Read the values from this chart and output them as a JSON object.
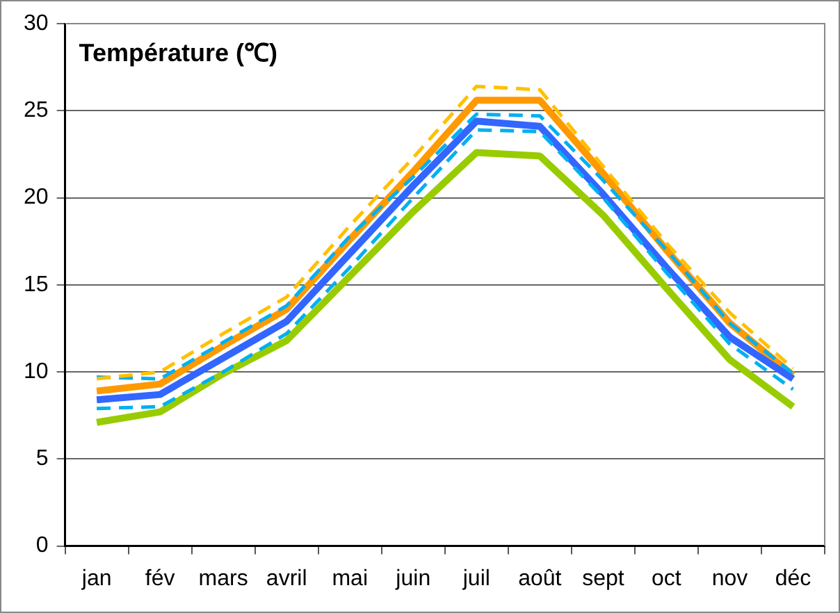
{
  "chart_data": {
    "type": "line",
    "title": "Température (℃)",
    "categories": [
      "jan",
      "fév",
      "mars",
      "avril",
      "mai",
      "juin",
      "juil",
      "août",
      "sept",
      "oct",
      "nov",
      "déc"
    ],
    "series": [
      {
        "color": "#ffc000",
        "line_style": "dashed",
        "values": [
          9.6,
          10.0,
          12.2,
          14.3,
          18.4,
          22.3,
          26.4,
          26.2,
          21.8,
          17.4,
          13.4,
          10.2
        ]
      },
      {
        "color": "#00b0f0",
        "line_style": "dashed",
        "values": [
          9.7,
          9.6,
          11.7,
          13.8,
          17.8,
          21.2,
          24.8,
          24.7,
          21.0,
          17.0,
          12.8,
          9.9
        ]
      },
      {
        "color": "#00b0f0",
        "line_style": "dashed",
        "values": [
          7.9,
          8.0,
          10.0,
          12.2,
          16.0,
          20.0,
          23.9,
          23.8,
          20.0,
          15.7,
          11.6,
          9.0
        ]
      },
      {
        "color": "#99cc00",
        "line_style": "solid",
        "values": [
          7.1,
          7.7,
          9.9,
          11.8,
          15.5,
          19.2,
          22.6,
          22.4,
          19.0,
          14.8,
          10.7,
          8.0
        ]
      },
      {
        "color": "#3366ff",
        "line_style": "solid",
        "values": [
          8.4,
          8.7,
          10.8,
          12.9,
          16.8,
          20.7,
          24.4,
          24.1,
          20.2,
          16.0,
          12.0,
          9.6
        ]
      },
      {
        "color": "#ff9900",
        "line_style": "solid",
        "values": [
          8.9,
          9.3,
          11.5,
          13.6,
          17.6,
          21.5,
          25.6,
          25.6,
          21.4,
          17.0,
          12.8,
          9.8
        ]
      }
    ],
    "ylim": [
      0,
      30
    ],
    "yticks": [
      0,
      5,
      10,
      15,
      20,
      25,
      30
    ],
    "grid": "y",
    "legend": false,
    "marker": "none"
  }
}
